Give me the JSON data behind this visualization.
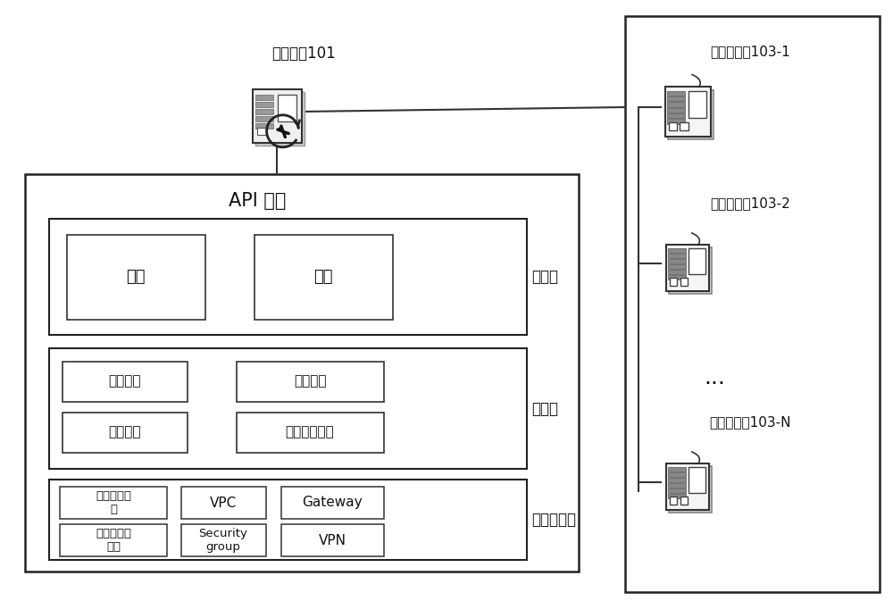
{
  "bg_color": "#ffffff",
  "text_color": "#111111",
  "cloud_server_label": "云服务器101",
  "api_label": "API 接口",
  "app_layer_label": "应用层",
  "service_layer_label": "服务层",
  "infra_layer_label": "基础设施层",
  "app_boxes": [
    "代码",
    "配置"
  ],
  "service_boxes_row1": [
    "操作系统",
    "整合设置"
  ],
  "service_boxes_row2": [
    "启动配置",
    "系统服务配置"
  ],
  "infra_boxes_row1": [
    "操作系统镜\n像",
    "VPC",
    "Gateway"
  ],
  "infra_boxes_row2": [
    "自动化口占\n配置",
    "Security\ngroup",
    "VPN"
  ],
  "app_servers": [
    "应用服务器103-1",
    "应用服务器103-2",
    "应用服务器103-N"
  ],
  "dots": "···"
}
